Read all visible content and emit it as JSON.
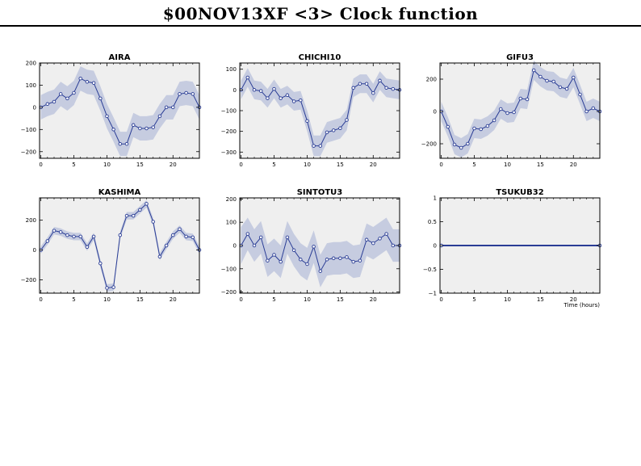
{
  "page": {
    "title": "$00NOV13XF <3>  Clock function"
  },
  "colors": {
    "panel_background": "#efefef",
    "band": "#c6cce0",
    "line": "#2a3d95",
    "marker_fill": "#ffffff"
  },
  "chart_data": [
    {
      "type": "line",
      "title": "AIRA",
      "xlabel": "",
      "ylabel": "",
      "xlim": [
        -0.2,
        24
      ],
      "ylim": [
        -230,
        200
      ],
      "xticks": [
        0,
        5,
        10,
        15,
        20
      ],
      "xtick_labels": [
        "0",
        "5",
        "10",
        "15",
        "20"
      ],
      "yticks": [
        -200,
        -100,
        0,
        100,
        200
      ],
      "ytick_labels": [
        "−200",
        "−100",
        "0",
        "100",
        "200"
      ],
      "x": [
        0,
        1,
        2,
        3,
        4,
        5,
        6,
        7,
        8,
        9,
        10,
        11,
        12,
        13,
        14,
        15,
        16,
        17,
        18,
        19,
        20,
        21,
        22,
        23,
        24
      ],
      "y": [
        0,
        15,
        25,
        60,
        40,
        65,
        130,
        115,
        110,
        40,
        -40,
        -100,
        -165,
        -165,
        -80,
        -95,
        -95,
        -90,
        -40,
        0,
        0,
        60,
        65,
        60,
        0
      ],
      "err": [
        55,
        55,
        55,
        55,
        55,
        55,
        55,
        55,
        55,
        55,
        55,
        55,
        55,
        55,
        55,
        55,
        55,
        55,
        55,
        55,
        55,
        55,
        55,
        55,
        55
      ]
    },
    {
      "type": "line",
      "title": "CHICHI10",
      "xlabel": "",
      "ylabel": "",
      "xlim": [
        -0.2,
        24
      ],
      "ylim": [
        -330,
        130
      ],
      "xticks": [
        0,
        5,
        10,
        15,
        20
      ],
      "xtick_labels": [
        "0",
        "5",
        "10",
        "15",
        "20"
      ],
      "yticks": [
        -300,
        -200,
        -100,
        0,
        100
      ],
      "ytick_labels": [
        "−300",
        "−200",
        "−100",
        "0",
        "100"
      ],
      "x": [
        0,
        1,
        2,
        3,
        4,
        5,
        6,
        7,
        8,
        9,
        10,
        11,
        12,
        13,
        14,
        15,
        16,
        17,
        18,
        19,
        20,
        21,
        22,
        23,
        24
      ],
      "y": [
        0,
        60,
        0,
        -5,
        -40,
        5,
        -40,
        -25,
        -55,
        -50,
        -150,
        -270,
        -270,
        -205,
        -195,
        -185,
        -145,
        10,
        30,
        30,
        -15,
        45,
        10,
        5,
        0
      ],
      "err": [
        45,
        45,
        45,
        45,
        45,
        45,
        45,
        45,
        45,
        45,
        50,
        50,
        50,
        50,
        50,
        50,
        50,
        45,
        45,
        45,
        45,
        45,
        45,
        45,
        45
      ]
    },
    {
      "type": "line",
      "title": "GIFU3",
      "xlabel": "",
      "ylabel": "",
      "xlim": [
        -0.2,
        24
      ],
      "ylim": [
        -290,
        300
      ],
      "xticks": [
        0,
        5,
        10,
        15,
        20
      ],
      "xtick_labels": [
        "0",
        "5",
        "10",
        "15",
        "20"
      ],
      "yticks": [
        -200,
        0,
        200
      ],
      "ytick_labels": [
        "−200",
        "0",
        "200"
      ],
      "x": [
        0,
        1,
        2,
        3,
        4,
        5,
        6,
        7,
        8,
        9,
        10,
        11,
        12,
        13,
        14,
        15,
        16,
        17,
        18,
        19,
        20,
        21,
        22,
        23,
        24
      ],
      "y": [
        0,
        -95,
        -205,
        -225,
        -200,
        -105,
        -110,
        -90,
        -55,
        15,
        -10,
        -5,
        80,
        75,
        255,
        215,
        190,
        185,
        150,
        140,
        210,
        105,
        0,
        20,
        0
      ],
      "err": [
        60,
        60,
        60,
        60,
        60,
        60,
        60,
        60,
        60,
        60,
        60,
        60,
        60,
        60,
        60,
        60,
        60,
        60,
        60,
        60,
        60,
        60,
        60,
        60,
        60
      ]
    },
    {
      "type": "line",
      "title": "KASHIMA",
      "xlabel": "",
      "ylabel": "",
      "xlim": [
        -0.2,
        24
      ],
      "ylim": [
        -290,
        350
      ],
      "xticks": [
        0,
        5,
        10,
        15,
        20
      ],
      "xtick_labels": [
        "0",
        "5",
        "10",
        "15",
        "20"
      ],
      "yticks": [
        -200,
        0,
        200
      ],
      "ytick_labels": [
        "−200",
        "0",
        "200"
      ],
      "x": [
        0,
        1,
        2,
        3,
        4,
        5,
        6,
        7,
        8,
        9,
        10,
        11,
        12,
        13,
        14,
        15,
        16,
        17,
        18,
        19,
        20,
        21,
        22,
        23,
        24
      ],
      "y": [
        0,
        60,
        130,
        120,
        100,
        90,
        90,
        20,
        90,
        -90,
        -255,
        -250,
        100,
        230,
        230,
        270,
        310,
        190,
        -45,
        30,
        100,
        140,
        90,
        85,
        0
      ],
      "err": [
        25,
        25,
        25,
        25,
        25,
        25,
        25,
        25,
        25,
        25,
        25,
        25,
        25,
        25,
        25,
        25,
        25,
        25,
        25,
        25,
        25,
        25,
        25,
        25,
        25
      ]
    },
    {
      "type": "line",
      "title": "SINTOTU3",
      "xlabel": "",
      "ylabel": "",
      "xlim": [
        -0.2,
        24
      ],
      "ylim": [
        -205,
        205
      ],
      "xticks": [
        0,
        5,
        10,
        15,
        20
      ],
      "xtick_labels": [
        "0",
        "5",
        "10",
        "15",
        "20"
      ],
      "yticks": [
        -200,
        -100,
        0,
        100,
        200
      ],
      "ytick_labels": [
        "−200",
        "−100",
        "0",
        "100",
        "200"
      ],
      "x": [
        0,
        1,
        2,
        3,
        4,
        5,
        6,
        7,
        8,
        9,
        10,
        11,
        12,
        13,
        14,
        15,
        16,
        17,
        18,
        19,
        20,
        21,
        22,
        23,
        24
      ],
      "y": [
        0,
        50,
        0,
        35,
        -65,
        -40,
        -70,
        35,
        -20,
        -60,
        -80,
        -5,
        -110,
        -60,
        -55,
        -55,
        -50,
        -70,
        -65,
        25,
        10,
        30,
        50,
        0,
        0
      ],
      "err": [
        80,
        70,
        70,
        70,
        70,
        70,
        70,
        70,
        70,
        70,
        70,
        70,
        70,
        70,
        70,
        70,
        70,
        70,
        70,
        70,
        70,
        70,
        70,
        70,
        70
      ]
    },
    {
      "type": "line",
      "title": "TSUKUB32",
      "xlabel": "Time (hours)",
      "ylabel": "",
      "xlim": [
        -0.2,
        24
      ],
      "ylim": [
        -1,
        1
      ],
      "xticks": [
        0,
        5,
        10,
        15,
        20
      ],
      "xtick_labels": [
        "0",
        "5",
        "10",
        "15",
        "20"
      ],
      "yticks": [
        -1,
        -0.5,
        0,
        0.5,
        1
      ],
      "ytick_labels": [
        "−1",
        "−0.5",
        "0",
        "0.5",
        "1"
      ],
      "x": [
        0,
        24
      ],
      "y": [
        0,
        0
      ],
      "err": [
        0,
        0
      ]
    }
  ]
}
